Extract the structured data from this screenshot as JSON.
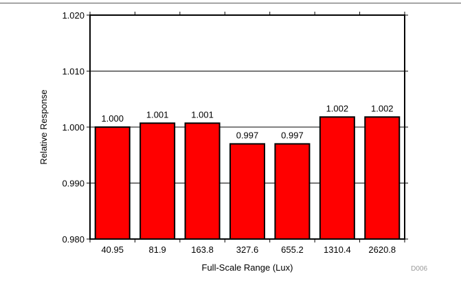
{
  "chart_data": {
    "type": "bar",
    "categories": [
      "40.95",
      "81.9",
      "163.8",
      "327.6",
      "655.2",
      "1310.4",
      "2620.8"
    ],
    "values": [
      1.0,
      1.0007,
      1.0007,
      0.997,
      0.997,
      1.0018,
      1.0018
    ],
    "data_labels": [
      "1.000",
      "1.001",
      "1.001",
      "0.997",
      "0.997",
      "1.002",
      "1.002"
    ],
    "title": "",
    "xlabel": "Full-Scale Range (Lux)",
    "ylabel": "Relative Response",
    "ylim": [
      0.98,
      1.02
    ],
    "yticks": [
      0.98,
      0.99,
      1.0,
      1.01,
      1.02
    ],
    "ytick_labels": [
      "0.980",
      "0.990",
      "1.000",
      "1.010",
      "1.020"
    ],
    "grid": "horizontal",
    "bar_color": "#ff0000",
    "figure_id": "D006"
  }
}
